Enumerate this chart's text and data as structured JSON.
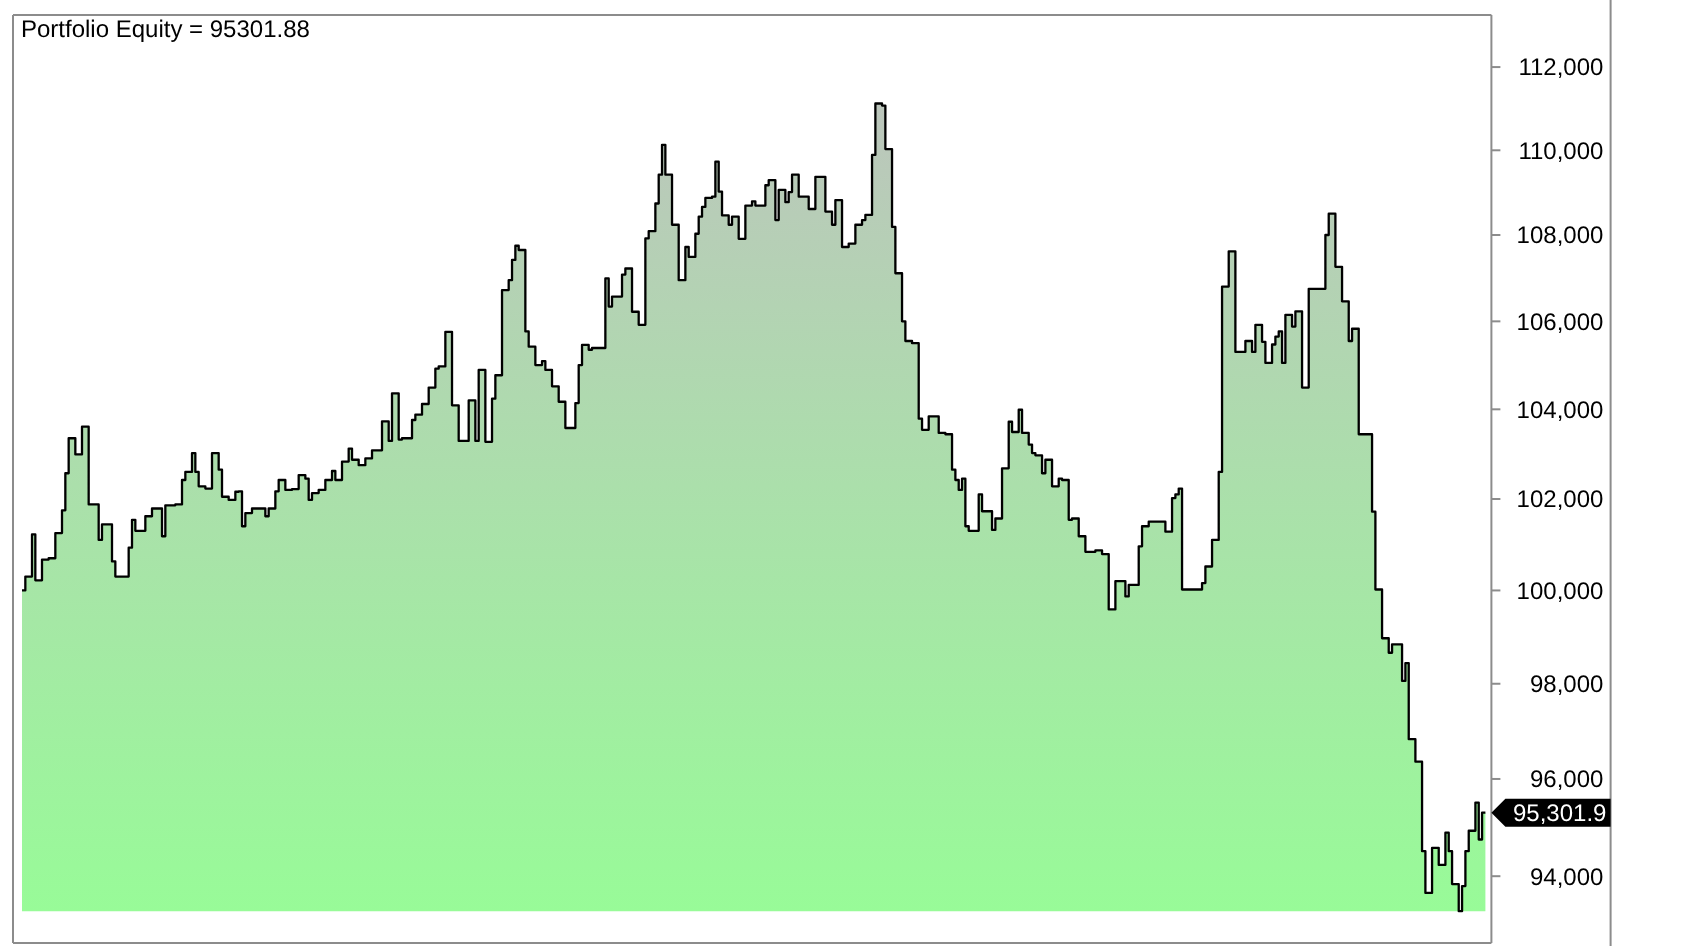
{
  "chart_data": {
    "type": "area",
    "title": "Portfolio Equity = 95301.88",
    "color": "#98fb98",
    "log": true,
    "ylim": [
      92650,
      113270
    ],
    "yticks": [
      {
        "value": 94000,
        "label": "94,000"
      },
      {
        "value": 96000,
        "label": "96,000"
      },
      {
        "value": 98000,
        "label": "98,000"
      },
      {
        "value": 100000,
        "label": "100,000"
      },
      {
        "value": 102000,
        "label": "102,000"
      },
      {
        "value": 104000,
        "label": "104,000"
      },
      {
        "value": 106000,
        "label": "106,000"
      },
      {
        "value": 108000,
        "label": "108,000"
      },
      {
        "value": 110000,
        "label": "110,000"
      },
      {
        "value": 112000,
        "label": "112,000"
      }
    ],
    "annotations": [
      "95,301.9"
    ],
    "categories": [
      null,
      null,
      null,
      null,
      null,
      null,
      null,
      null,
      null,
      null,
      null,
      null,
      null,
      null,
      null,
      null,
      null,
      null,
      null,
      null,
      null,
      null,
      null,
      null,
      null,
      null,
      null,
      null,
      null,
      null,
      null,
      null,
      null,
      null,
      null,
      null,
      null,
      null,
      null,
      null,
      null,
      null,
      null,
      null,
      null,
      null,
      null,
      null,
      null,
      null,
      null,
      null,
      null,
      null,
      null,
      null,
      null,
      null,
      null,
      null,
      null,
      null,
      null,
      null,
      null,
      null,
      null,
      null,
      null,
      null,
      null,
      null,
      null,
      null,
      null,
      null,
      null,
      null,
      null,
      null,
      null,
      null,
      null,
      null,
      null,
      null,
      null,
      null,
      null,
      null,
      null,
      null,
      null,
      null,
      null,
      null,
      null,
      null,
      null,
      null,
      null,
      null,
      null,
      null,
      null,
      null,
      null,
      null,
      null,
      null,
      null,
      null,
      null,
      null,
      null,
      null,
      null,
      null,
      null,
      null,
      null,
      null,
      null,
      null,
      null,
      null,
      null,
      null,
      null,
      null,
      null,
      null,
      null,
      null,
      null,
      null,
      null,
      null,
      null,
      null,
      null,
      null,
      null,
      null,
      null,
      null,
      null,
      null,
      null,
      null,
      null,
      null,
      null,
      null,
      null,
      null,
      null,
      null,
      null,
      null,
      null,
      null,
      null,
      null,
      null,
      null,
      null,
      null,
      null,
      null,
      null,
      null,
      null,
      null,
      null,
      null,
      null,
      null,
      null,
      null,
      null,
      null,
      null,
      null,
      null,
      null,
      null,
      null,
      null,
      null,
      null,
      null,
      null,
      null,
      null,
      null,
      null,
      null,
      null,
      null,
      null,
      null,
      null,
      null,
      null,
      null,
      null,
      null,
      null,
      null,
      null,
      null,
      null,
      null,
      null,
      null,
      null,
      null,
      null,
      null,
      null,
      null,
      null,
      null,
      null,
      null,
      null,
      null,
      null,
      null,
      null,
      null,
      null,
      null,
      null,
      null,
      null,
      null,
      null,
      null,
      null,
      null,
      null,
      null,
      null,
      null,
      null,
      null,
      null,
      null,
      null,
      null,
      null,
      null,
      null,
      null,
      null,
      null,
      null,
      null,
      null,
      null,
      null,
      null,
      null,
      null,
      null,
      null,
      null,
      null,
      null,
      null,
      null,
      null,
      null,
      null,
      null,
      null,
      null,
      null,
      null,
      null,
      null,
      null,
      null,
      null,
      null,
      null,
      null,
      null,
      null,
      null,
      null,
      null,
      null,
      null,
      null,
      null,
      null,
      null,
      null,
      null,
      null,
      null,
      null,
      null,
      null,
      null,
      null,
      null,
      null,
      null,
      null,
      null,
      null,
      null,
      null,
      null,
      null,
      null,
      null,
      null,
      null,
      null,
      null,
      null,
      null,
      null,
      null,
      null,
      null,
      null,
      null,
      null,
      null,
      null,
      null,
      null,
      null,
      null,
      null,
      null,
      null,
      null,
      null,
      null,
      null,
      null,
      null,
      null,
      null,
      null,
      null,
      null,
      null,
      null,
      null,
      null,
      null,
      null,
      null,
      null,
      null,
      null,
      null,
      null,
      null,
      null,
      null,
      null,
      null,
      null,
      null,
      null,
      null,
      null,
      null,
      null,
      null,
      null,
      null,
      null,
      null,
      null,
      null,
      null,
      null,
      null,
      null,
      null,
      null,
      null,
      null,
      null,
      null,
      null,
      null,
      null,
      null,
      null,
      null,
      null,
      null,
      null,
      null,
      null,
      null,
      null,
      null,
      null,
      null,
      null,
      null,
      null,
      null,
      null,
      null,
      null,
      null,
      null,
      null,
      null,
      null,
      null,
      null,
      null,
      null,
      null,
      null,
      null,
      null,
      null,
      null,
      null,
      null,
      null,
      null,
      null,
      null
    ],
    "values": [
      100000,
      100300,
      100300,
      101220,
      100220,
      100220,
      100670,
      100670,
      100700,
      100700,
      101250,
      101250,
      101750,
      102570,
      103350,
      103350,
      102990,
      102990,
      103610,
      103610,
      101880,
      101880,
      101880,
      101100,
      101440,
      101440,
      101440,
      100630,
      100300,
      100300,
      100300,
      100300,
      100930,
      101540,
      101300,
      101300,
      101300,
      101620,
      101620,
      101790,
      101790,
      101790,
      101180,
      101860,
      101860,
      101860,
      101880,
      101880,
      102420,
      102600,
      102600,
      103020,
      102600,
      102280,
      102280,
      102230,
      102230,
      103020,
      103020,
      102650,
      102050,
      102050,
      101980,
      101980,
      102160,
      102170,
      101400,
      101690,
      101690,
      101790,
      101790,
      101790,
      101790,
      101620,
      101790,
      101790,
      102170,
      102420,
      102420,
      102200,
      102200,
      102220,
      102220,
      102530,
      102530,
      102450,
      101980,
      102130,
      102130,
      102200,
      102200,
      102420,
      102420,
      102620,
      102420,
      102420,
      102830,
      102830,
      103120,
      102870,
      102870,
      102750,
      102750,
      102900,
      102900,
      103080,
      103080,
      103080,
      103730,
      103730,
      103290,
      104360,
      104360,
      103320,
      103350,
      103350,
      103350,
      103760,
      103880,
      103880,
      104120,
      104120,
      104490,
      104490,
      104920,
      104970,
      104970,
      105760,
      105760,
      104090,
      104090,
      103290,
      103290,
      103290,
      104200,
      104200,
      103290,
      104890,
      104890,
      103270,
      103270,
      104240,
      104770,
      104770,
      106720,
      106720,
      106950,
      107420,
      107750,
      107650,
      107650,
      105770,
      105420,
      105420,
      105000,
      105000,
      105090,
      104890,
      104890,
      104520,
      104520,
      104170,
      104170,
      103580,
      103580,
      103580,
      104140,
      105000,
      105460,
      105460,
      105350,
      105390,
      105390,
      105390,
      105390,
      106990,
      106340,
      106570,
      106570,
      106570,
      107080,
      107220,
      107220,
      106220,
      106220,
      105920,
      105920,
      107920,
      108090,
      108090,
      108740,
      109420,
      110130,
      109420,
      109420,
      108240,
      108240,
      106950,
      106950,
      107720,
      107490,
      107490,
      108030,
      108430,
      108660,
      108870,
      108870,
      108900,
      109730,
      109020,
      108460,
      108460,
      108240,
      108430,
      108430,
      107910,
      107910,
      108690,
      108690,
      108790,
      108690,
      108690,
      108690,
      109170,
      109290,
      109290,
      108350,
      109060,
      109060,
      108770,
      109010,
      109420,
      109420,
      108900,
      108900,
      108900,
      108610,
      108610,
      109370,
      109370,
      109370,
      108550,
      108550,
      108240,
      108820,
      108820,
      107720,
      107720,
      107800,
      107800,
      108240,
      108240,
      108350,
      108470,
      108470,
      109890,
      111120,
      111120,
      111070,
      110030,
      110030,
      108190,
      107110,
      107110,
      106000,
      105550,
      105550,
      105500,
      105500,
      103790,
      103540,
      103540,
      103840,
      103840,
      103840,
      103470,
      103470,
      103440,
      103440,
      102650,
      102420,
      102200,
      102450,
      101400,
      101300,
      101300,
      101300,
      102100,
      101730,
      101730,
      101730,
      101320,
      101570,
      101570,
      102680,
      102680,
      103720,
      103490,
      103490,
      103990,
      103470,
      103470,
      103210,
      103020,
      102970,
      102970,
      102570,
      102870,
      102870,
      102280,
      102280,
      102450,
      102420,
      102420,
      101540,
      101570,
      101570,
      101180,
      101180,
      100840,
      100840,
      100840,
      100870,
      100870,
      100790,
      100790,
      99590,
      99590,
      100200,
      100200,
      100200,
      99870,
      100120,
      100120,
      100120,
      100960,
      101400,
      101400,
      101500,
      101500,
      101500,
      101500,
      101500,
      101280,
      101280,
      102020,
      102100,
      102230,
      100020,
      100020,
      100020,
      100020,
      100020,
      100020,
      100160,
      100520,
      100520,
      101100,
      101100,
      102600,
      106800,
      106800,
      107620,
      107620,
      105300,
      105300,
      105300,
      105550,
      105550,
      105300,
      105920,
      105920,
      105530,
      105050,
      105050,
      105470,
      105650,
      105770,
      105050,
      106150,
      106150,
      105880,
      106230,
      106230,
      104490,
      104490,
      106750,
      106750,
      106750,
      106750,
      106750,
      108000,
      108500,
      108500,
      107260,
      107260,
      106460,
      106460,
      105550,
      105830,
      105830,
      103440,
      103440,
      103440,
      103440,
      101720,
      100020,
      100020,
      98970,
      98970,
      98660,
      98840,
      98840,
      98840,
      98060,
      98440,
      96830,
      96830,
      96360,
      96360,
      94510,
      93660,
      93660,
      94580,
      94580,
      94230,
      94230,
      94890,
      94510,
      93840,
      93840,
      93290,
      93800,
      94510,
      94930,
      94930,
      95510,
      94750,
      95301.88
    ]
  }
}
